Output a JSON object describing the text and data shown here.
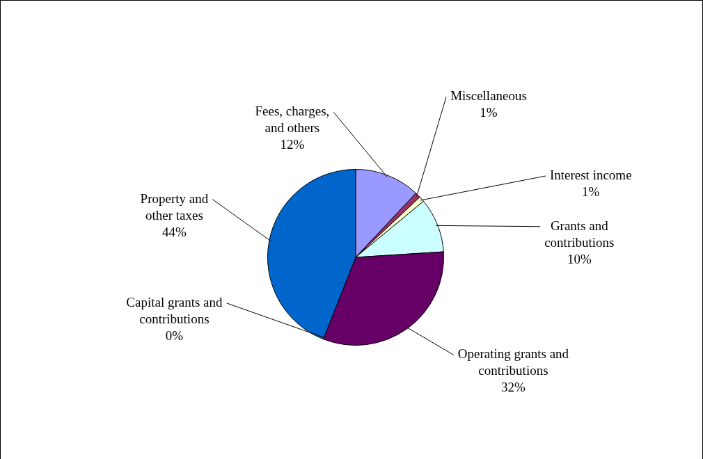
{
  "chart_data": {
    "type": "pie",
    "categories": [
      "Fees, charges, and others",
      "Miscellaneous",
      "Interest income",
      "Grants and contributions",
      "Operating grants and contributions",
      "Capital grants and contributions",
      "Property and other taxes"
    ],
    "values": [
      12,
      1,
      1,
      10,
      32,
      0,
      44
    ],
    "value_labels": [
      "12%",
      "1%",
      "1%",
      "10%",
      "32%",
      "0%",
      "44%"
    ],
    "colors": [
      "#9999ff",
      "#993366",
      "#ffffcc",
      "#ccffff",
      "#660066",
      "#ffffff",
      "#0066cc"
    ],
    "legend": false
  }
}
